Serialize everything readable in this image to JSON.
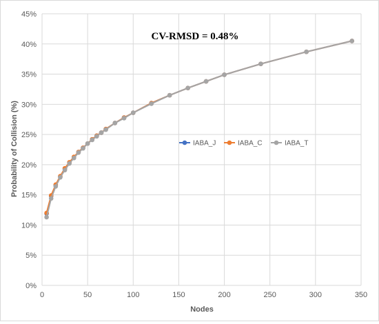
{
  "chart_data": {
    "type": "line",
    "xlabel": "Nodes",
    "ylabel": "Probability of Collision (%)",
    "annotation": "CV-RMSD = 0.48%",
    "xlim": [
      0,
      350
    ],
    "ylim": [
      0,
      45
    ],
    "xticks": [
      0,
      50,
      100,
      150,
      200,
      250,
      300,
      350
    ],
    "yticks": [
      0,
      5,
      10,
      15,
      20,
      25,
      30,
      35,
      40,
      45
    ],
    "ytick_suffix": "%",
    "grid": true,
    "legend_position": "right-center",
    "x": [
      5,
      10,
      15,
      20,
      25,
      30,
      35,
      40,
      45,
      50,
      55,
      60,
      65,
      70,
      80,
      90,
      100,
      120,
      140,
      160,
      180,
      200,
      240,
      290,
      340
    ],
    "series": [
      {
        "name": "IABA_J",
        "color": "#4472C4",
        "values": [
          11.9,
          14.8,
          16.6,
          18.0,
          19.3,
          20.3,
          21.2,
          22.1,
          22.8,
          23.5,
          24.2,
          24.8,
          25.3,
          25.9,
          26.9,
          27.8,
          28.6,
          30.2,
          31.5,
          32.7,
          33.8,
          34.9,
          36.7,
          38.7,
          40.5
        ]
      },
      {
        "name": "IABA_C",
        "color": "#ED7D31",
        "values": [
          12.0,
          14.9,
          16.7,
          18.1,
          19.4,
          20.4,
          21.3,
          22.1,
          22.8,
          23.5,
          24.2,
          24.8,
          25.3,
          25.9,
          26.9,
          27.8,
          28.6,
          30.2,
          31.5,
          32.7,
          33.8,
          34.9,
          36.7,
          38.7,
          40.5
        ]
      },
      {
        "name": "IABA_T",
        "color": "#A5A5A5",
        "values": [
          11.3,
          14.4,
          16.4,
          17.9,
          19.1,
          20.2,
          21.1,
          22.0,
          22.7,
          23.5,
          24.1,
          24.7,
          25.3,
          25.8,
          26.9,
          27.7,
          28.6,
          30.1,
          31.5,
          32.7,
          33.8,
          34.9,
          36.7,
          38.7,
          40.5
        ]
      }
    ]
  }
}
